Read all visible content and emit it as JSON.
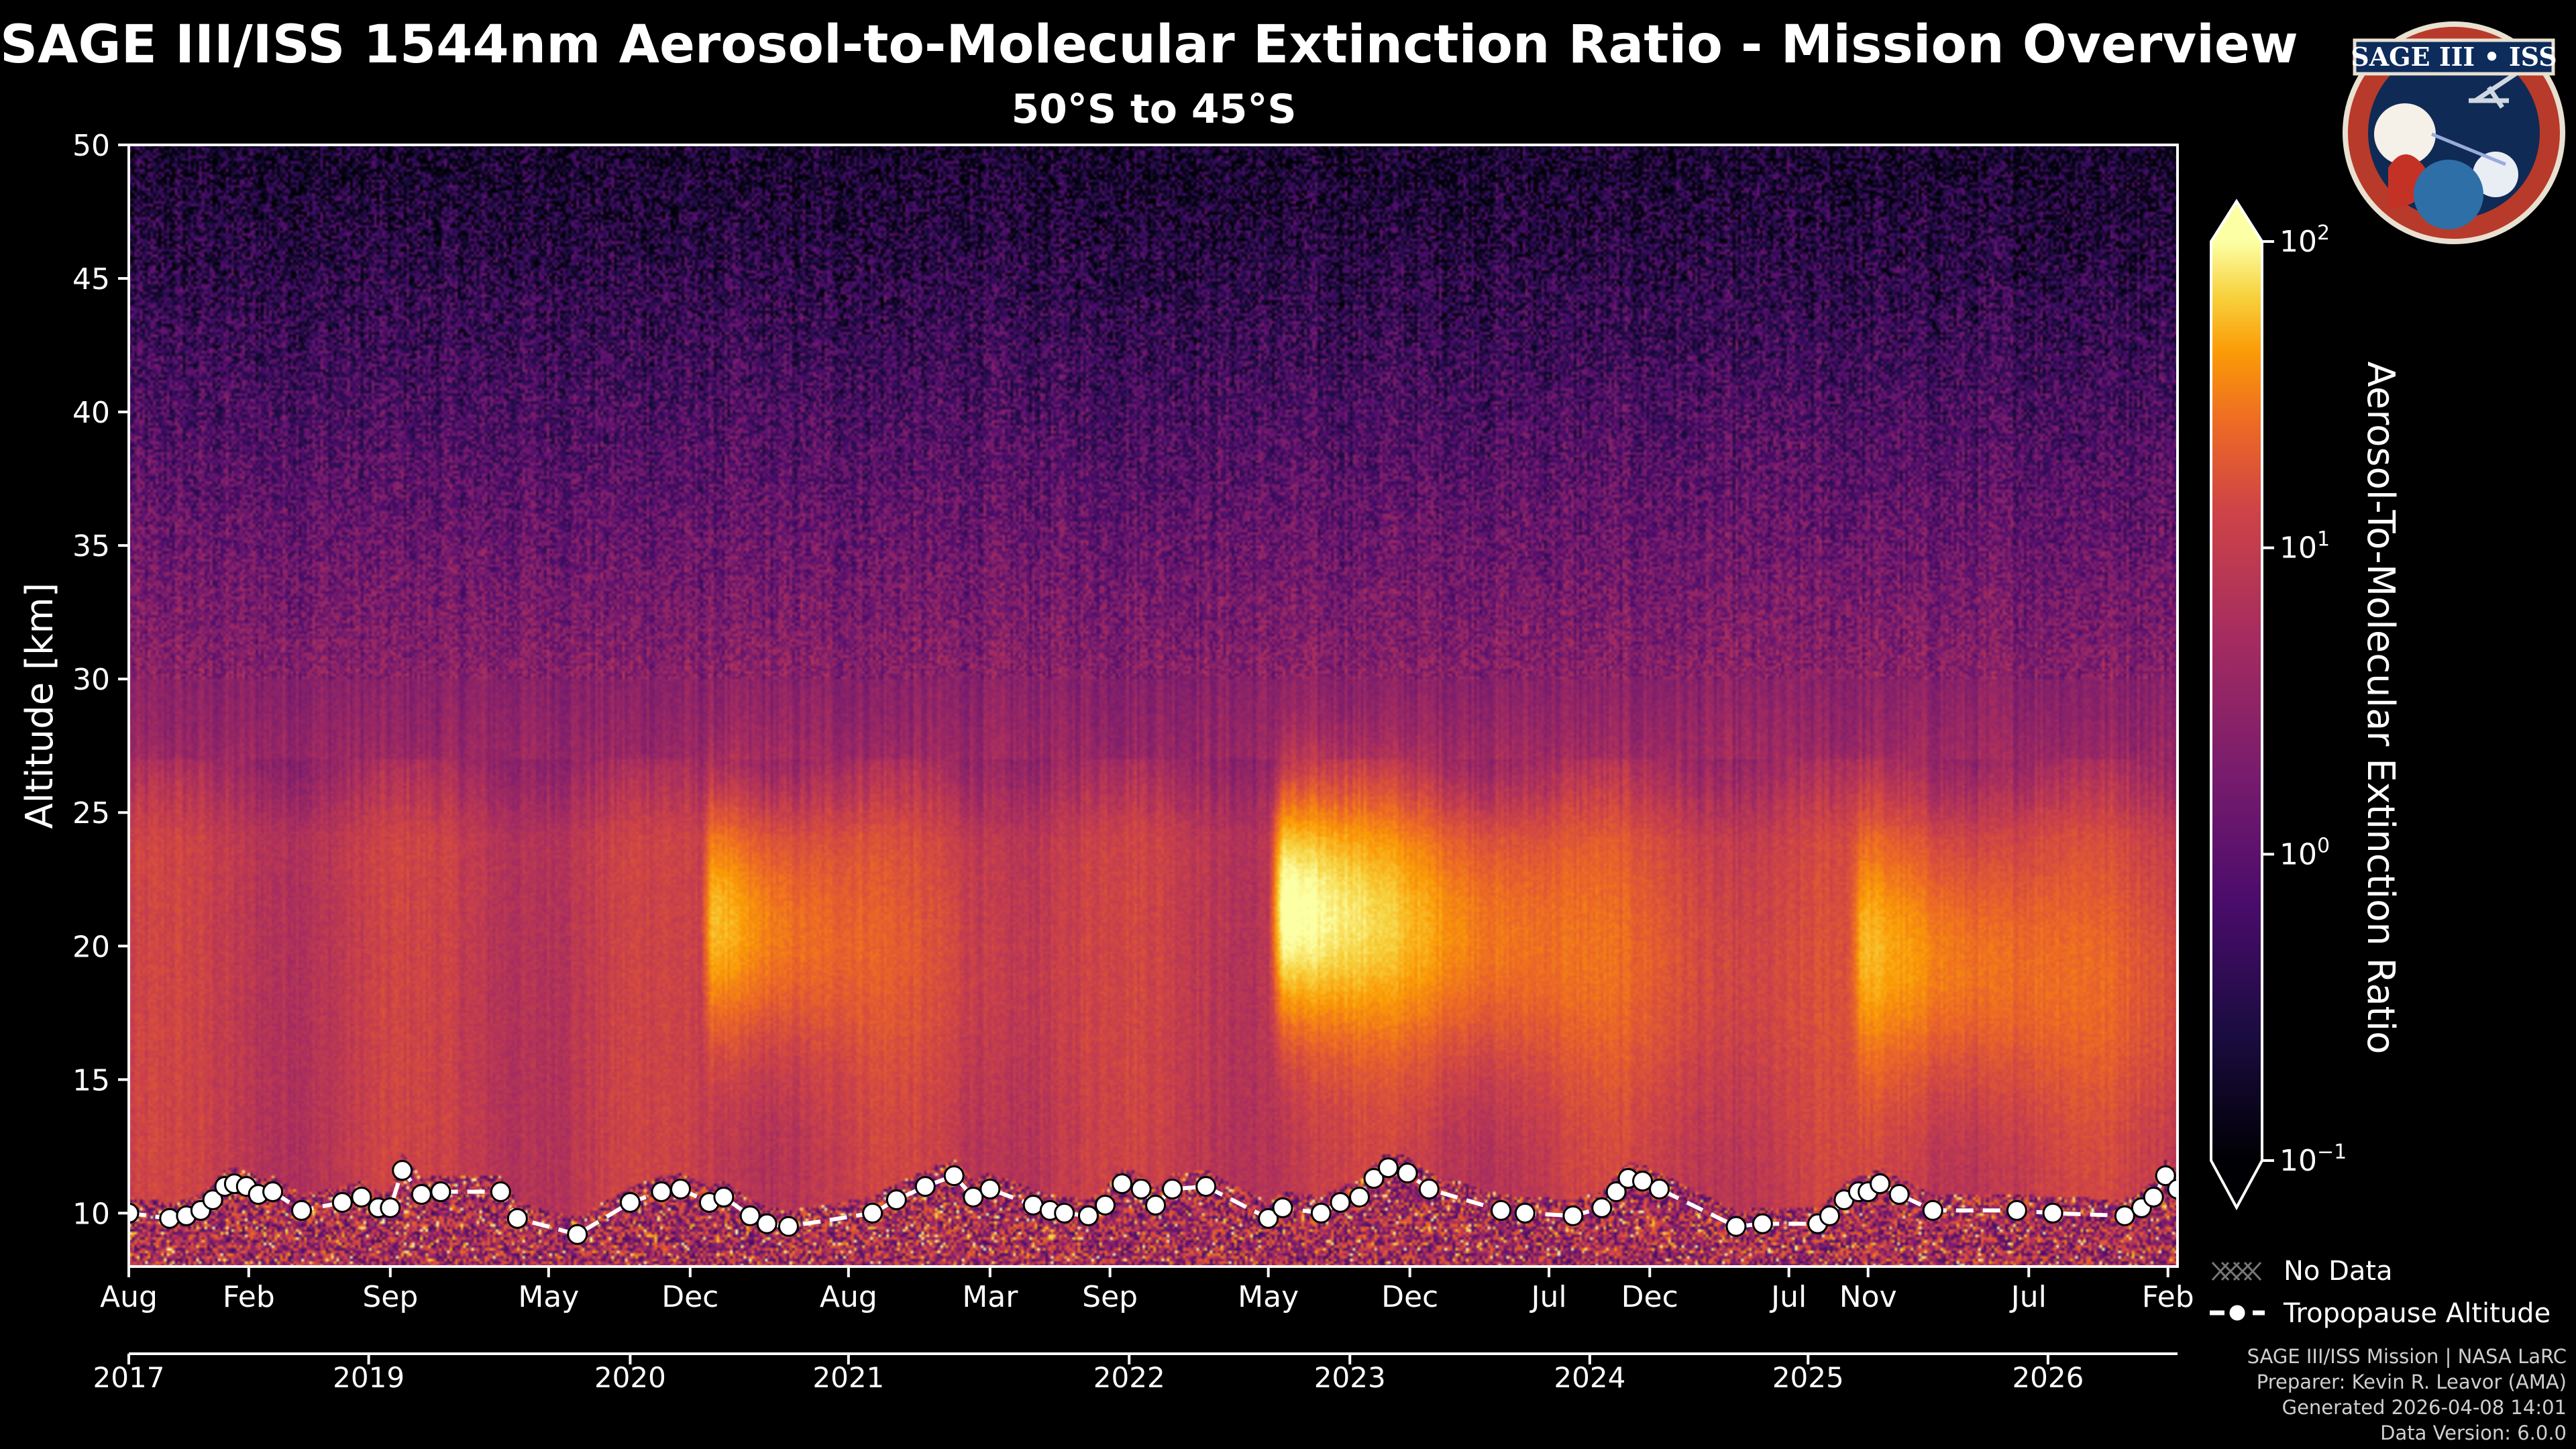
{
  "chart_data": {
    "type": "heatmap",
    "title": "SAGE III/ISS 1544nm Aerosol-to-Molecular Extinction Ratio - Mission Overview",
    "subtitle": "50°S to 45°S",
    "ylabel": "Altitude [km]",
    "ylim": [
      8,
      50
    ],
    "y_ticks": [
      10,
      15,
      20,
      25,
      30,
      35,
      40,
      45,
      50
    ],
    "x_range": [
      2017.58,
      2026.12
    ],
    "month_ticks": [
      {
        "label": "Aug",
        "t": 2017.58
      },
      {
        "label": "Feb",
        "t": 2018.08
      },
      {
        "label": "Sep",
        "t": 2018.67
      },
      {
        "label": "May",
        "t": 2019.33
      },
      {
        "label": "Dec",
        "t": 2019.92
      },
      {
        "label": "Aug",
        "t": 2020.58
      },
      {
        "label": "Mar",
        "t": 2021.17
      },
      {
        "label": "Sep",
        "t": 2021.67
      },
      {
        "label": "May",
        "t": 2022.33
      },
      {
        "label": "Dec",
        "t": 2022.92
      },
      {
        "label": "Jul",
        "t": 2023.5
      },
      {
        "label": "Dec",
        "t": 2023.92
      },
      {
        "label": "Jul",
        "t": 2024.5
      },
      {
        "label": "Nov",
        "t": 2024.83
      },
      {
        "label": "Jul",
        "t": 2025.5
      },
      {
        "label": "Feb",
        "t": 2026.08
      }
    ],
    "year_ticks": [
      {
        "label": "2017",
        "t": 2017.58
      },
      {
        "label": "2019",
        "t": 2018.58
      },
      {
        "label": "2020",
        "t": 2019.67
      },
      {
        "label": "2021",
        "t": 2020.58
      },
      {
        "label": "2022",
        "t": 2021.75
      },
      {
        "label": "2023",
        "t": 2022.67
      },
      {
        "label": "2024",
        "t": 2023.67
      },
      {
        "label": "2025",
        "t": 2024.58
      },
      {
        "label": "2026",
        "t": 2025.58
      }
    ],
    "colorbar": {
      "label": "Aerosol-To-Molecular Extinction Ratio",
      "scale": "log",
      "range": [
        0.1,
        100
      ],
      "ticks": [
        {
          "base": "10",
          "exp": "2",
          "value": 100
        },
        {
          "base": "10",
          "exp": "1",
          "value": 10
        },
        {
          "base": "10",
          "exp": "0",
          "value": 1
        },
        {
          "base": "10",
          "exp": "−1",
          "value": 0.1
        }
      ],
      "colormap": "inferno"
    },
    "aerosol_events": [
      {
        "start": 2019.96,
        "end": 2020.65,
        "center_km": 19,
        "peak_ratio": 20
      },
      {
        "start": 2022.33,
        "end": 2023.55,
        "center_km": 19.5,
        "peak_ratio": 80
      },
      {
        "start": 2024.75,
        "end": 2026.1,
        "center_km": 18,
        "peak_ratio": 12
      }
    ],
    "tropopause": {
      "name": "Tropopause Altitude",
      "t": [
        2017.58,
        2017.75,
        2017.82,
        2017.88,
        2017.93,
        2017.98,
        2018.02,
        2018.07,
        2018.12,
        2018.18,
        2018.3,
        2018.47,
        2018.55,
        2018.62,
        2018.67,
        2018.72,
        2018.8,
        2018.88,
        2019.13,
        2019.2,
        2019.45,
        2019.67,
        2019.8,
        2019.88,
        2020.0,
        2020.06,
        2020.17,
        2020.24,
        2020.33,
        2020.68,
        2020.78,
        2020.9,
        2021.02,
        2021.1,
        2021.17,
        2021.35,
        2021.42,
        2021.48,
        2021.58,
        2021.65,
        2021.72,
        2021.8,
        2021.86,
        2021.93,
        2022.07,
        2022.33,
        2022.39,
        2022.55,
        2022.63,
        2022.71,
        2022.77,
        2022.83,
        2022.91,
        2023.0,
        2023.3,
        2023.4,
        2023.6,
        2023.72,
        2023.78,
        2023.83,
        2023.89,
        2023.96,
        2024.28,
        2024.39,
        2024.62,
        2024.67,
        2024.73,
        2024.79,
        2024.83,
        2024.88,
        2024.96,
        2025.1,
        2025.45,
        2025.6,
        2025.9,
        2025.97,
        2026.02,
        2026.07,
        2026.12
      ],
      "km": [
        10.0,
        9.8,
        9.9,
        10.1,
        10.5,
        11.0,
        11.1,
        11.0,
        10.7,
        10.8,
        10.1,
        10.4,
        10.6,
        10.2,
        10.2,
        11.6,
        10.7,
        10.8,
        10.8,
        9.8,
        9.2,
        10.4,
        10.8,
        10.9,
        10.4,
        10.6,
        9.9,
        9.6,
        9.5,
        10.0,
        10.5,
        11.0,
        11.4,
        10.6,
        10.9,
        10.3,
        10.1,
        10.0,
        9.9,
        10.3,
        11.1,
        10.9,
        10.3,
        10.9,
        11.0,
        9.8,
        10.2,
        10.0,
        10.4,
        10.6,
        11.3,
        11.7,
        11.5,
        10.9,
        10.1,
        10.0,
        9.9,
        10.2,
        10.8,
        11.3,
        11.2,
        10.9,
        9.5,
        9.6,
        9.6,
        9.9,
        10.5,
        10.8,
        10.8,
        11.1,
        10.7,
        10.1,
        10.1,
        10.0,
        9.9,
        10.2,
        10.6,
        11.4,
        10.9
      ]
    },
    "legend": {
      "position": "lower-right-outside",
      "entries": [
        {
          "label": "No Data",
          "kind": "hatch"
        },
        {
          "label": "Tropopause Altitude",
          "kind": "line-marker"
        }
      ]
    }
  },
  "logo": {
    "text": "SAGE III • ISS"
  },
  "footer": {
    "line1": "SAGE III/ISS Mission | NASA LaRC",
    "line2": "Preparer: Kevin R. Leavor (AMA)",
    "line3": "Generated 2026-04-08 14:01",
    "line4": "Data Version: 6.0.0"
  },
  "colors": {
    "background": "#000000",
    "tropopause_line": "#ffffff",
    "axes": "#ffffff"
  }
}
